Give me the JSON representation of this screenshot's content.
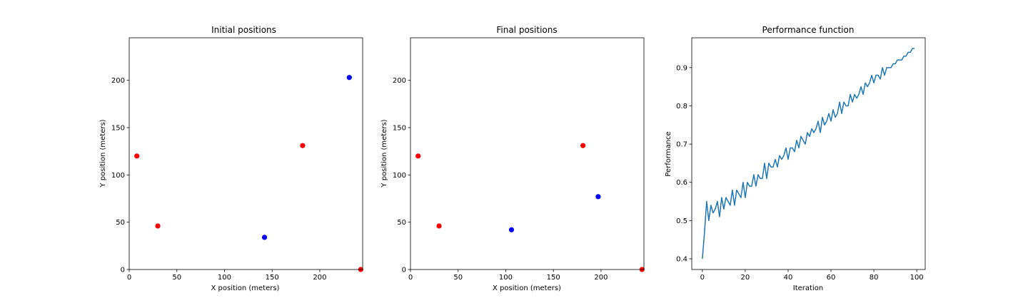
{
  "chart_data": [
    {
      "type": "scatter",
      "title": "Initial positions",
      "xlabel": "X position (meters)",
      "ylabel": "Y position (meters)",
      "xlim": [
        0,
        245
      ],
      "ylim": [
        0,
        245
      ],
      "xticks": [
        0,
        50,
        100,
        150,
        200
      ],
      "yticks": [
        0,
        50,
        100,
        150,
        200
      ],
      "grid": false,
      "series": [
        {
          "color": "#ff0000",
          "points": [
            [
              8,
              120
            ],
            [
              30,
              46
            ],
            [
              182,
              131
            ],
            [
              243,
              0
            ]
          ]
        },
        {
          "color": "#0000ff",
          "points": [
            [
              142,
              34
            ],
            [
              231,
              203
            ]
          ]
        }
      ]
    },
    {
      "type": "scatter",
      "title": "Final positions",
      "xlabel": "X position (meters)",
      "ylabel": "Y position (meters)",
      "xlim": [
        0,
        245
      ],
      "ylim": [
        0,
        245
      ],
      "xticks": [
        0,
        50,
        100,
        150,
        200
      ],
      "yticks": [
        0,
        50,
        100,
        150,
        200
      ],
      "grid": false,
      "series": [
        {
          "color": "#ff0000",
          "points": [
            [
              8,
              120
            ],
            [
              30,
              46
            ],
            [
              181,
              131
            ],
            [
              243,
              0
            ]
          ]
        },
        {
          "color": "#0000ff",
          "points": [
            [
              106,
              42
            ],
            [
              197,
              77
            ]
          ]
        }
      ]
    },
    {
      "type": "line",
      "title": "Performance function",
      "xlabel": "Iteration",
      "ylabel": "Performance",
      "xlim": [
        -4.95,
        103.95
      ],
      "ylim": [
        0.372,
        0.978
      ],
      "xticks": [
        0,
        20,
        40,
        60,
        80,
        100
      ],
      "yticks": [
        0.4,
        0.5,
        0.6,
        0.7,
        0.8,
        0.9
      ],
      "grid": false,
      "series": [
        {
          "color": "#1f77b4",
          "x": [
            0,
            1,
            2,
            3,
            4,
            5,
            6,
            7,
            8,
            9,
            10,
            11,
            12,
            13,
            14,
            15,
            16,
            17,
            18,
            19,
            20,
            21,
            22,
            23,
            24,
            25,
            26,
            27,
            28,
            29,
            30,
            31,
            32,
            33,
            34,
            35,
            36,
            37,
            38,
            39,
            40,
            41,
            42,
            43,
            44,
            45,
            46,
            47,
            48,
            49,
            50,
            51,
            52,
            53,
            54,
            55,
            56,
            57,
            58,
            59,
            60,
            61,
            62,
            63,
            64,
            65,
            66,
            67,
            68,
            69,
            70,
            71,
            72,
            73,
            74,
            75,
            76,
            77,
            78,
            79,
            80,
            81,
            82,
            83,
            84,
            85,
            86,
            87,
            88,
            89,
            90,
            91,
            92,
            93,
            94,
            95,
            96,
            97,
            98,
            99
          ],
          "y": [
            0.4,
            0.47,
            0.55,
            0.5,
            0.54,
            0.52,
            0.53,
            0.55,
            0.51,
            0.56,
            0.53,
            0.56,
            0.55,
            0.54,
            0.58,
            0.54,
            0.58,
            0.57,
            0.56,
            0.6,
            0.56,
            0.6,
            0.59,
            0.59,
            0.62,
            0.59,
            0.62,
            0.61,
            0.61,
            0.65,
            0.61,
            0.65,
            0.64,
            0.64,
            0.66,
            0.64,
            0.67,
            0.66,
            0.67,
            0.69,
            0.66,
            0.69,
            0.69,
            0.68,
            0.71,
            0.69,
            0.72,
            0.71,
            0.7,
            0.73,
            0.72,
            0.74,
            0.73,
            0.74,
            0.76,
            0.73,
            0.77,
            0.75,
            0.76,
            0.78,
            0.76,
            0.79,
            0.77,
            0.78,
            0.81,
            0.78,
            0.81,
            0.8,
            0.8,
            0.83,
            0.81,
            0.83,
            0.82,
            0.83,
            0.85,
            0.83,
            0.86,
            0.85,
            0.86,
            0.88,
            0.86,
            0.88,
            0.88,
            0.87,
            0.9,
            0.88,
            0.9,
            0.9,
            0.9,
            0.91,
            0.91,
            0.92,
            0.92,
            0.92,
            0.93,
            0.93,
            0.94,
            0.94,
            0.95,
            0.95
          ]
        }
      ]
    }
  ]
}
